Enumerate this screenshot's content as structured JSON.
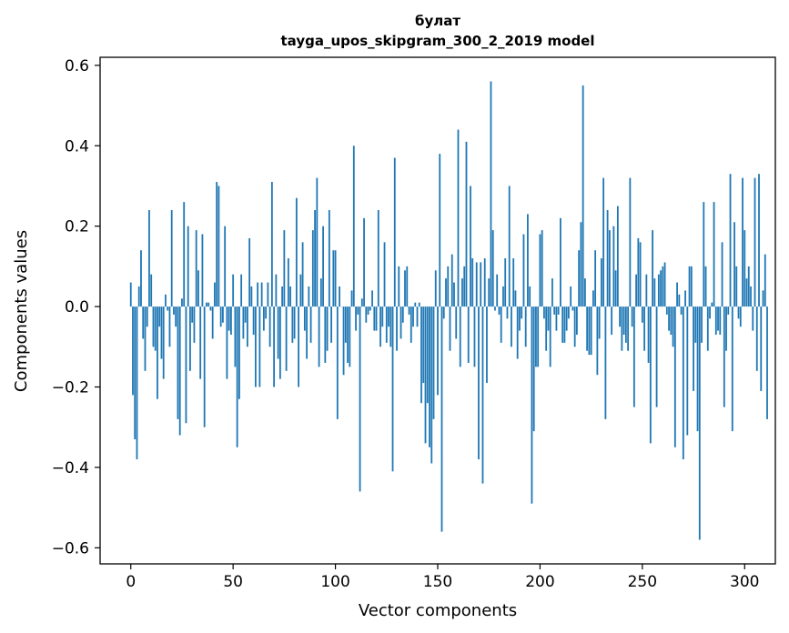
{
  "chart_data": {
    "type": "bar",
    "title_line1": "булат",
    "title_line2": "tayga_upos_skipgram_300_2_2019 model",
    "xlabel": "Vector components",
    "ylabel": "Components values",
    "xlim": [
      -15,
      315
    ],
    "ylim": [
      -0.64,
      0.62
    ],
    "xticks": [
      0,
      50,
      100,
      150,
      200,
      250,
      300
    ],
    "xtick_labels": [
      "0",
      "50",
      "100",
      "150",
      "200",
      "250",
      "300"
    ],
    "yticks": [
      0.6,
      0.4,
      0.2,
      0.0,
      -0.2,
      -0.4,
      -0.6
    ],
    "ytick_labels": [
      "0.6",
      "0.4",
      "0.2",
      "0.0",
      "−0.2",
      "−0.4",
      "−0.6"
    ],
    "bar_color": "#1f77b4",
    "values": [
      0.06,
      -0.22,
      -0.33,
      -0.38,
      0.05,
      0.14,
      -0.08,
      -0.16,
      -0.05,
      0.24,
      0.08,
      -0.1,
      -0.11,
      -0.23,
      -0.05,
      -0.13,
      -0.18,
      0.03,
      -0.01,
      -0.1,
      0.24,
      -0.02,
      -0.05,
      -0.28,
      -0.32,
      0.02,
      0.26,
      -0.29,
      0.2,
      -0.16,
      -0.04,
      -0.09,
      0.19,
      0.09,
      -0.18,
      0.18,
      -0.3,
      0.01,
      0.01,
      -0.01,
      -0.08,
      0.06,
      0.31,
      0.3,
      -0.05,
      -0.04,
      0.2,
      -0.18,
      -0.06,
      -0.07,
      0.08,
      -0.15,
      -0.35,
      -0.23,
      0.08,
      -0.08,
      -0.04,
      -0.1,
      0.17,
      0.05,
      -0.07,
      -0.2,
      0.06,
      -0.2,
      0.06,
      -0.06,
      -0.03,
      0.06,
      -0.1,
      0.31,
      -0.2,
      0.08,
      -0.13,
      -0.18,
      0.05,
      0.19,
      -0.16,
      0.12,
      0.05,
      -0.09,
      -0.08,
      0.27,
      -0.2,
      0.08,
      0.16,
      -0.06,
      -0.13,
      0.05,
      -0.09,
      0.19,
      0.24,
      0.32,
      -0.15,
      0.07,
      0.2,
      -0.14,
      -0.11,
      0.24,
      -0.09,
      0.14,
      0.14,
      -0.28,
      0.05,
      0.0,
      -0.17,
      -0.09,
      -0.14,
      -0.15,
      0.04,
      0.4,
      -0.06,
      -0.02,
      -0.46,
      0.02,
      0.22,
      -0.04,
      -0.02,
      -0.01,
      0.04,
      -0.06,
      -0.06,
      0.24,
      -0.1,
      -0.05,
      0.16,
      -0.09,
      -0.05,
      -0.1,
      -0.41,
      0.37,
      -0.11,
      0.1,
      -0.08,
      -0.04,
      0.09,
      0.1,
      -0.02,
      -0.09,
      -0.05,
      0.01,
      -0.05,
      0.01,
      -0.24,
      -0.19,
      -0.34,
      -0.24,
      -0.35,
      -0.39,
      -0.28,
      0.09,
      -0.22,
      0.38,
      -0.56,
      -0.03,
      0.07,
      0.1,
      -0.11,
      0.13,
      0.06,
      -0.08,
      0.44,
      -0.15,
      0.07,
      0.1,
      0.41,
      -0.14,
      0.3,
      0.12,
      -0.15,
      0.11,
      -0.38,
      0.11,
      -0.44,
      0.12,
      -0.19,
      0.07,
      0.56,
      0.19,
      -0.01,
      0.08,
      -0.02,
      -0.09,
      0.05,
      0.12,
      -0.03,
      0.3,
      -0.1,
      0.12,
      0.04,
      -0.13,
      -0.06,
      -0.03,
      0.18,
      -0.1,
      0.23,
      0.05,
      -0.49,
      -0.31,
      -0.15,
      -0.15,
      0.18,
      0.19,
      -0.03,
      -0.11,
      -0.06,
      -0.15,
      0.07,
      -0.02,
      -0.06,
      -0.02,
      0.22,
      -0.09,
      -0.09,
      -0.06,
      -0.03,
      0.05,
      -0.01,
      -0.1,
      -0.07,
      0.14,
      0.21,
      0.55,
      0.07,
      -0.11,
      -0.12,
      -0.12,
      0.04,
      0.14,
      -0.17,
      -0.08,
      0.12,
      0.32,
      -0.28,
      0.24,
      0.19,
      -0.07,
      0.2,
      0.09,
      0.25,
      -0.05,
      -0.11,
      -0.07,
      -0.09,
      -0.11,
      0.32,
      -0.05,
      -0.25,
      0.08,
      0.17,
      0.16,
      -0.04,
      -0.11,
      0.08,
      -0.14,
      -0.34,
      0.19,
      0.07,
      -0.25,
      0.08,
      0.09,
      0.1,
      0.11,
      -0.02,
      -0.06,
      -0.07,
      -0.1,
      -0.35,
      0.06,
      0.03,
      -0.02,
      -0.38,
      0.04,
      -0.32,
      0.1,
      0.1,
      -0.21,
      -0.09,
      -0.31,
      -0.58,
      -0.09,
      0.26,
      0.1,
      -0.11,
      -0.03,
      0.01,
      0.26,
      -0.07,
      -0.06,
      -0.07,
      0.16,
      -0.25,
      -0.11,
      -0.02,
      0.33,
      -0.31,
      0.21,
      0.1,
      -0.03,
      -0.05,
      0.32,
      0.19,
      0.07,
      0.1,
      0.05,
      -0.06,
      0.32,
      -0.16,
      0.33,
      -0.21,
      0.04,
      0.13,
      -0.28
    ]
  }
}
